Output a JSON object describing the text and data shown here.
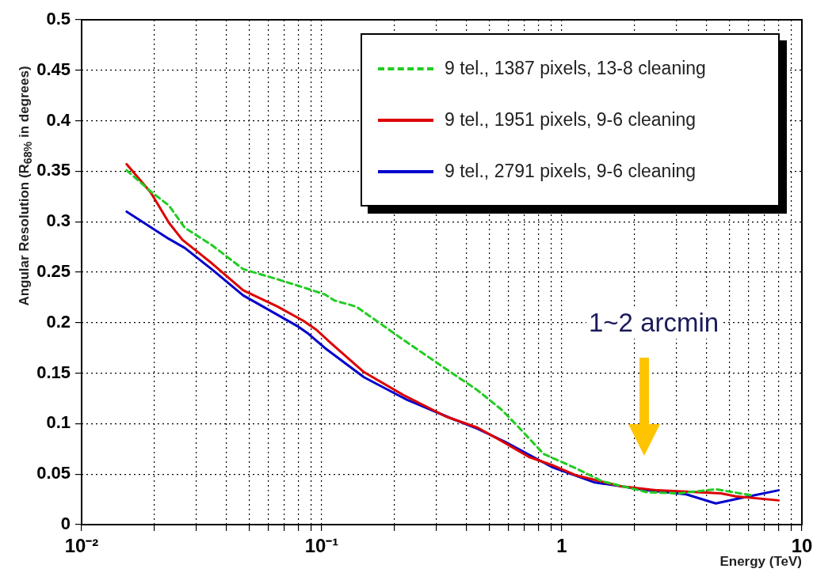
{
  "chart_data": {
    "type": "line",
    "xlabel": "Energy (TeV)",
    "ylabel": "Angular Resolution (R$_{68%}$ in degrees)",
    "annotations": [
      "1~2 arcmin"
    ],
    "log": "x",
    "xlim": [
      0.01,
      10
    ],
    "xticks": [
      {
        "value": 0.01,
        "label": "10⁻²"
      },
      {
        "value": 0.02,
        "label": null
      },
      {
        "value": 0.03,
        "label": null
      },
      {
        "value": 0.04,
        "label": null
      },
      {
        "value": 0.05,
        "label": null
      },
      {
        "value": 0.06,
        "label": null
      },
      {
        "value": 0.07,
        "label": null
      },
      {
        "value": 0.08,
        "label": null
      },
      {
        "value": 0.09,
        "label": null
      },
      {
        "value": 0.1,
        "label": "10⁻¹"
      },
      {
        "value": 0.2,
        "label": null
      },
      {
        "value": 0.3,
        "label": null
      },
      {
        "value": 0.4,
        "label": null
      },
      {
        "value": 0.5,
        "label": null
      },
      {
        "value": 0.6,
        "label": null
      },
      {
        "value": 0.7,
        "label": null
      },
      {
        "value": 0.8,
        "label": null
      },
      {
        "value": 0.9,
        "label": null
      },
      1,
      {
        "value": 2,
        "label": null
      },
      {
        "value": 3,
        "label": null
      },
      {
        "value": 4,
        "label": null
      },
      {
        "value": 5,
        "label": null
      },
      {
        "value": 6,
        "label": null
      },
      {
        "value": 7,
        "label": null
      },
      {
        "value": 8,
        "label": null
      },
      {
        "value": 9,
        "label": null
      },
      10
    ],
    "ylim": [
      0,
      0.5
    ],
    "yticks": [
      0,
      0.05,
      0.1,
      0.15,
      0.2,
      0.25,
      0.3,
      0.35,
      0.4,
      0.45,
      0.5
    ],
    "grid": true,
    "legend": "top right",
    "series": [
      {
        "name": "9 tel., 1387 pixels, 13-8 cleaning",
        "color": "#22cc22",
        "line_style": "dashed",
        "x": [
          0.0154,
          0.0194,
          0.0231,
          0.0269,
          0.0348,
          0.0471,
          0.0654,
          0.0837,
          0.103,
          0.113,
          0.139,
          0.171,
          0.225,
          0.33,
          0.446,
          0.56,
          0.64,
          0.84,
          1.14,
          1.47,
          2.27,
          3.08,
          4.38,
          5.5,
          6.2
        ],
        "values": [
          0.351,
          0.33,
          0.316,
          0.294,
          0.277,
          0.253,
          0.243,
          0.235,
          0.228,
          0.222,
          0.216,
          0.201,
          0.181,
          0.154,
          0.133,
          0.114,
          0.1,
          0.07,
          0.056,
          0.043,
          0.032,
          0.031,
          0.035,
          0.031,
          0.029
        ]
      },
      {
        "name": "9 tel., 1951 pixels, 9-6 cleaning",
        "color": "#dd0000",
        "line_style": "solid",
        "x": [
          0.0154,
          0.0194,
          0.0231,
          0.0263,
          0.0348,
          0.0471,
          0.0654,
          0.0837,
          0.095,
          0.109,
          0.15,
          0.22,
          0.33,
          0.446,
          0.56,
          0.73,
          0.91,
          1.14,
          1.76,
          2.5,
          4.6,
          5.3,
          8.0
        ],
        "values": [
          0.357,
          0.329,
          0.299,
          0.282,
          0.259,
          0.232,
          0.216,
          0.202,
          0.193,
          0.18,
          0.151,
          0.128,
          0.107,
          0.096,
          0.083,
          0.067,
          0.059,
          0.049,
          0.038,
          0.034,
          0.031,
          0.028,
          0.024
        ]
      },
      {
        "name": "9 tel., 2791 pixels, 9-6 cleaning",
        "color": "#0000cc",
        "line_style": "solid",
        "x": [
          0.0154,
          0.0231,
          0.0269,
          0.0348,
          0.0471,
          0.055,
          0.08,
          0.088,
          0.103,
          0.15,
          0.225,
          0.34,
          0.446,
          0.58,
          0.91,
          1.36,
          2.27,
          3.3,
          4.38,
          5.5,
          8.0
        ],
        "values": [
          0.31,
          0.283,
          0.274,
          0.253,
          0.227,
          0.218,
          0.196,
          0.189,
          0.175,
          0.146,
          0.124,
          0.106,
          0.095,
          0.082,
          0.057,
          0.042,
          0.034,
          0.03,
          0.021,
          0.026,
          0.034
        ]
      }
    ]
  }
}
